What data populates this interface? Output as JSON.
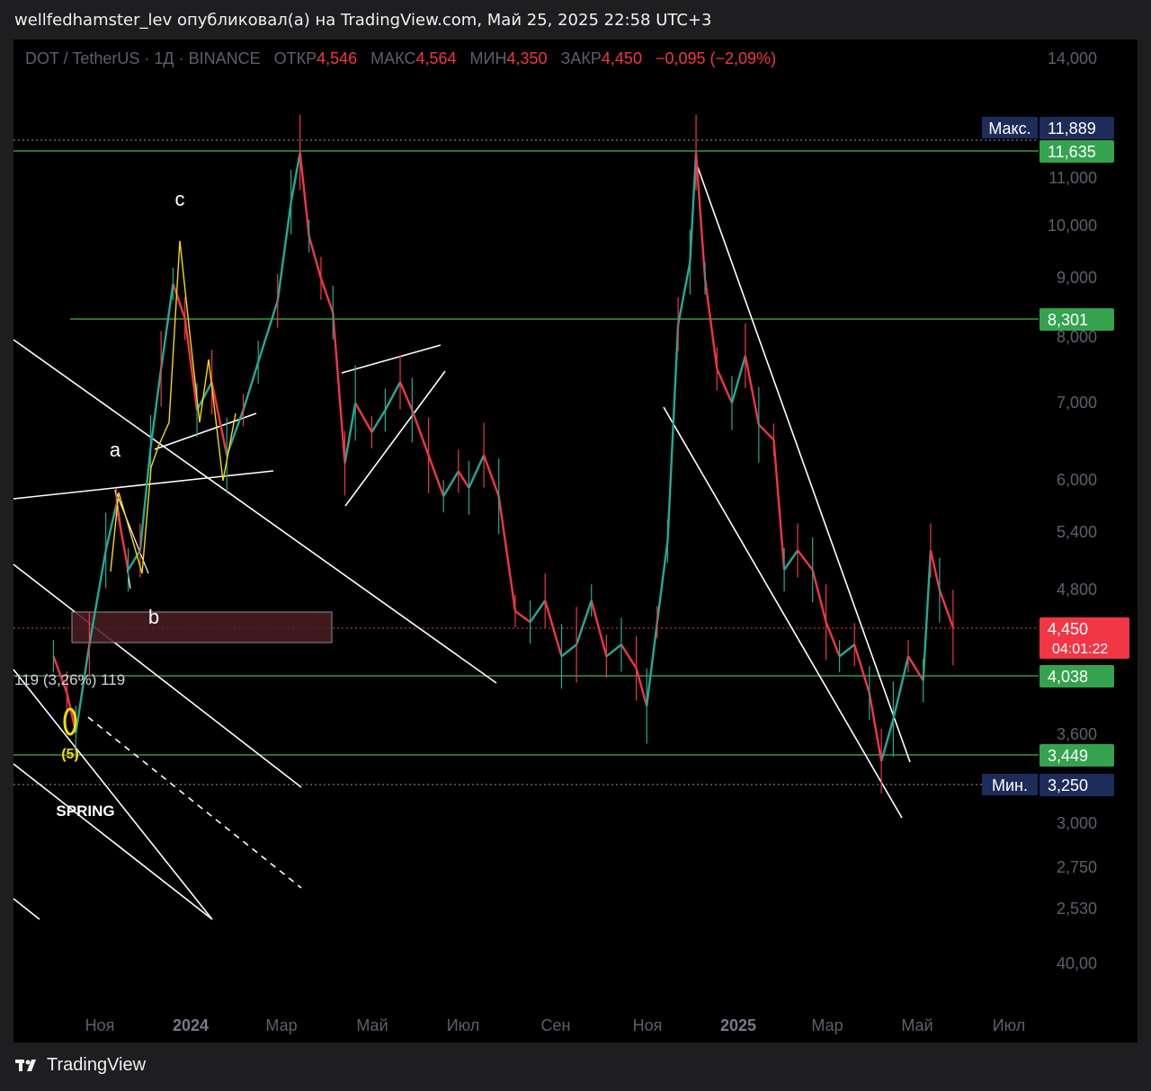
{
  "header": {
    "published_line": "wellfedhamster_lev опубликовал(а) на TradingView.com, Май 25, 2025 22:58 UTC+3"
  },
  "legend": {
    "symbol": "DOT / TetherUS · 1Д · BINANCE",
    "open_label": "ОТКР",
    "open": "4,546",
    "high_label": "МАКС",
    "high": "4,564",
    "low_label": "МИН",
    "low": "4,350",
    "close_label": "ЗАКР",
    "close": "4,450",
    "change": "−0,095 (−2,09%)"
  },
  "chart_data": {
    "type": "line",
    "y_axis_ticks": [
      "14,000",
      "11,000",
      "10,000",
      "9,000",
      "8,000",
      "7,000",
      "6,000",
      "5,400",
      "4,800",
      "3,600",
      "3,000",
      "2,750",
      "2,530",
      "40,00"
    ],
    "x_axis_ticks": [
      "Ноя",
      "2024",
      "Мар",
      "Май",
      "Июл",
      "Сен",
      "Ноя",
      "2025",
      "Мар",
      "Май",
      "Июл"
    ],
    "price_labels": [
      {
        "label": "Макс.",
        "value": "11,889",
        "style": "navy"
      },
      {
        "label": "",
        "value": "11,635",
        "style": "green"
      },
      {
        "label": "",
        "value": "8,301",
        "style": "green"
      },
      {
        "label": "",
        "value": "4,450",
        "sub": "04:01:22",
        "style": "red"
      },
      {
        "label": "",
        "value": "4,038",
        "style": "green"
      },
      {
        "label": "",
        "value": "3,449",
        "style": "green"
      },
      {
        "label": "Мин.",
        "value": "3,250",
        "style": "navy"
      }
    ],
    "series": [
      {
        "values": [
          [
            "2023-10-01",
            4.2
          ],
          [
            "2023-10-10",
            3.9
          ],
          [
            "2023-10-16",
            3.6
          ],
          [
            "2023-10-25",
            4.3
          ],
          [
            "2023-11-05",
            5.2
          ],
          [
            "2023-11-12",
            5.7
          ],
          [
            "2023-11-20",
            5.0
          ],
          [
            "2023-11-28",
            5.2
          ],
          [
            "2023-12-05",
            6.4
          ],
          [
            "2023-12-12",
            7.5
          ],
          [
            "2023-12-20",
            8.9
          ],
          [
            "2023-12-28",
            8.3
          ],
          [
            "2024-01-05",
            6.9
          ],
          [
            "2024-01-15",
            7.3
          ],
          [
            "2024-01-25",
            6.3
          ],
          [
            "2024-02-05",
            6.9
          ],
          [
            "2024-02-15",
            7.6
          ],
          [
            "2024-02-28",
            8.6
          ],
          [
            "2024-03-08",
            10.5
          ],
          [
            "2024-03-14",
            11.6
          ],
          [
            "2024-03-20",
            9.8
          ],
          [
            "2024-03-28",
            9.0
          ],
          [
            "2024-04-05",
            8.4
          ],
          [
            "2024-04-13",
            6.2
          ],
          [
            "2024-04-20",
            7.0
          ],
          [
            "2024-05-01",
            6.6
          ],
          [
            "2024-05-10",
            6.9
          ],
          [
            "2024-05-20",
            7.3
          ],
          [
            "2024-05-28",
            6.9
          ],
          [
            "2024-06-08",
            6.3
          ],
          [
            "2024-06-18",
            5.8
          ],
          [
            "2024-06-28",
            6.1
          ],
          [
            "2024-07-05",
            5.9
          ],
          [
            "2024-07-15",
            6.3
          ],
          [
            "2024-07-25",
            5.8
          ],
          [
            "2024-08-05",
            4.6
          ],
          [
            "2024-08-15",
            4.5
          ],
          [
            "2024-08-25",
            4.7
          ],
          [
            "2024-09-05",
            4.2
          ],
          [
            "2024-09-15",
            4.3
          ],
          [
            "2024-09-25",
            4.7
          ],
          [
            "2024-10-05",
            4.2
          ],
          [
            "2024-10-15",
            4.3
          ],
          [
            "2024-10-25",
            4.1
          ],
          [
            "2024-11-01",
            3.8
          ],
          [
            "2024-11-08",
            4.5
          ],
          [
            "2024-11-15",
            5.3
          ],
          [
            "2024-11-22",
            8.2
          ],
          [
            "2024-11-30",
            9.3
          ],
          [
            "2024-12-04",
            11.6
          ],
          [
            "2024-12-10",
            9.0
          ],
          [
            "2024-12-18",
            7.5
          ],
          [
            "2024-12-28",
            7.0
          ],
          [
            "2025-01-06",
            7.7
          ],
          [
            "2025-01-15",
            6.7
          ],
          [
            "2025-01-25",
            6.5
          ],
          [
            "2025-02-01",
            5.0
          ],
          [
            "2025-02-10",
            5.2
          ],
          [
            "2025-02-20",
            5.0
          ],
          [
            "2025-03-01",
            4.5
          ],
          [
            "2025-03-10",
            4.2
          ],
          [
            "2025-03-20",
            4.3
          ],
          [
            "2025-03-30",
            3.9
          ],
          [
            "2025-04-07",
            3.4
          ],
          [
            "2025-04-15",
            3.7
          ],
          [
            "2025-04-25",
            4.2
          ],
          [
            "2025-05-05",
            4.0
          ],
          [
            "2025-05-10",
            5.2
          ],
          [
            "2025-05-16",
            4.8
          ],
          [
            "2025-05-25",
            4.45
          ]
        ]
      }
    ],
    "annotations": [
      "a",
      "b",
      "c",
      "(5)",
      "SPRING",
      "119 (3,26%) 119"
    ]
  },
  "footer": {
    "brand": "TradingView"
  }
}
